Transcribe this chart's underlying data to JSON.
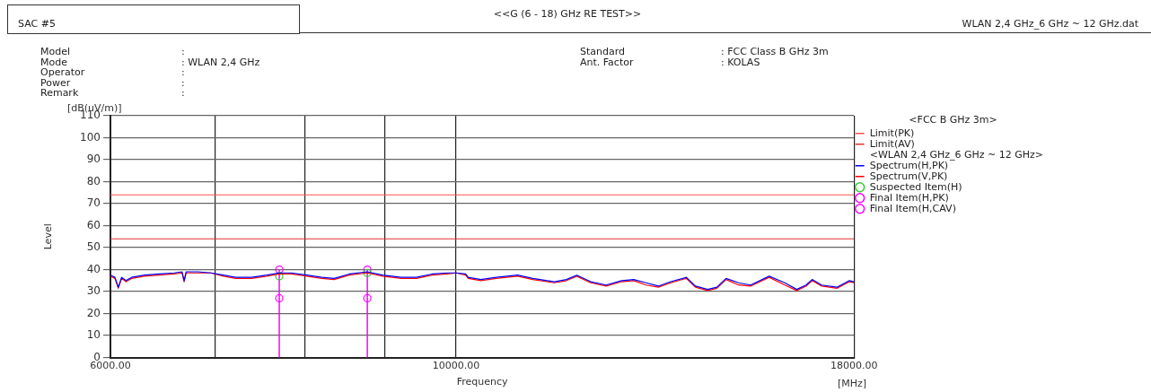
{
  "chart_data": {
    "type": "line",
    "title": "<<G (6 - 18) GHz RE TEST>>",
    "xlabel": "Frequency",
    "ylabel": "Level",
    "legend_title": "<FCC B GHz 3m>",
    "annotations": [
      "SAC #5",
      "WLAN 2,4 GHz_6 GHz ~ 12 GHz.dat",
      "Model",
      "Mode",
      "Operator",
      "Power",
      "Remark",
      ":",
      ": WLAN 2,4 GHz",
      ":",
      ":",
      ":",
      "Standard",
      "Ant. Factor",
      ": FCC Class B GHz 3m",
      ": KOLAS",
      "<WLAN 2,4 GHz_6 GHz ~ 12 GHz>",
      "[dB(uV/m)]",
      "[MHz]"
    ],
    "x": [
      6000,
      6040,
      6070,
      6100,
      6140,
      6190,
      6310,
      6450,
      6590,
      6670,
      6690,
      6710,
      6830,
      6960,
      7090,
      7220,
      7390,
      7560,
      7700,
      7840,
      8020,
      8200,
      8350,
      8540,
      8770,
      8970,
      9220,
      9430,
      9650,
      9870,
      10000,
      10140,
      10180,
      10370,
      10610,
      10950,
      11200,
      11560,
      11770,
      11950,
      12200,
      12480,
      12770,
      13000,
      13240,
      13480,
      13730,
      14050,
      14240,
      14500,
      14700,
      14900,
      15180,
      15450,
      15880,
      16250,
      16540,
      16770,
      16920,
      17160,
      17550,
      17880,
      18000
    ],
    "series": [
      {
        "name": "Limit(PK)",
        "type": "line",
        "color": "#ff5050",
        "marker": "none",
        "x": [
          6000,
          18000
        ],
        "values": [
          74,
          74
        ]
      },
      {
        "name": "Limit(AV)",
        "type": "line",
        "color": "#e03030",
        "marker": "none",
        "x": [
          6000,
          18000
        ],
        "values": [
          54,
          54
        ]
      },
      {
        "name": "Spectrum(H,PK)",
        "color": "#0000ff",
        "marker": "none",
        "values": [
          37.5,
          36.5,
          32,
          36.5,
          35,
          36.5,
          37.5,
          38,
          38.5,
          39,
          35,
          39,
          39,
          38.5,
          37.5,
          36.5,
          36.5,
          37.5,
          38.5,
          38.5,
          37.5,
          36.5,
          36,
          38,
          39,
          37.5,
          36.5,
          36.5,
          38,
          38.5,
          38.5,
          38,
          36.5,
          35.5,
          36.5,
          37.5,
          36,
          34.5,
          35.5,
          37.5,
          34.5,
          33,
          35,
          35.5,
          34,
          32.5,
          34.5,
          36.5,
          32.5,
          31,
          32,
          36,
          34,
          33,
          37,
          34,
          31,
          33,
          35.5,
          33,
          32,
          35,
          34.5
        ]
      },
      {
        "name": "Spectrum(V,PK)",
        "color": "#ff0000",
        "marker": "none",
        "values": [
          37,
          36,
          31.5,
          36,
          34.5,
          36,
          37,
          37.5,
          38,
          38.5,
          34.5,
          38.5,
          38.5,
          38.5,
          37,
          36,
          36,
          37,
          38,
          38,
          37,
          36,
          35.5,
          37.5,
          38.5,
          37,
          36,
          36,
          37.5,
          38,
          38.5,
          37.5,
          36,
          35,
          36,
          37,
          35.5,
          34,
          35,
          37,
          34,
          32.5,
          34.5,
          35,
          33,
          32,
          34,
          36,
          32,
          30.5,
          31.5,
          35.5,
          33,
          32.5,
          36.5,
          33,
          30.5,
          32.5,
          35,
          32.5,
          31.5,
          34.5,
          34
        ]
      },
      {
        "name": "Suspected Item(H)",
        "type": "scatter",
        "color": "#33cc33",
        "marker": "circle",
        "x": [
          7700,
          8770
        ],
        "values": [
          37,
          38.5
        ]
      },
      {
        "name": "Final Item(H,PK)",
        "type": "lollipop",
        "color": "#ff00ff",
        "marker": "circle",
        "x": [
          7700,
          8770
        ],
        "values": [
          40,
          40
        ]
      },
      {
        "name": "Final Item(H,CAV)",
        "type": "scatter",
        "color": "#ff00ff",
        "marker": "circle",
        "x": [
          7700,
          8770
        ],
        "values": [
          27,
          27
        ]
      }
    ],
    "log": "x",
    "xlim": [
      6000,
      18000
    ],
    "xticks": [
      {
        "value": 6000,
        "label": "6000.00"
      },
      {
        "value": 7000,
        "label": null
      },
      {
        "value": 8000,
        "label": null
      },
      {
        "value": 9000,
        "label": null
      },
      {
        "value": 10000,
        "label": "10000.00"
      },
      {
        "value": 18000,
        "label": "18000.00"
      }
    ],
    "ylim": [
      0,
      110
    ],
    "yticks": [
      0,
      10,
      20,
      30,
      40,
      50,
      60,
      70,
      80,
      90,
      100,
      110
    ],
    "grid": true,
    "legend": "right"
  }
}
